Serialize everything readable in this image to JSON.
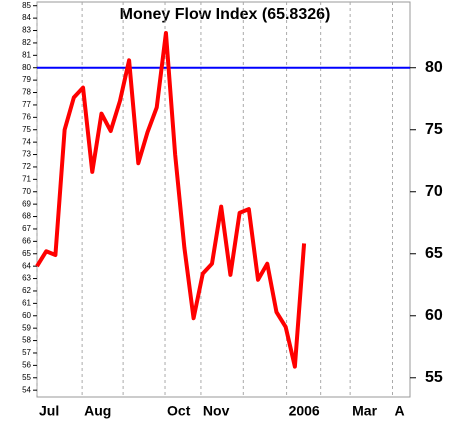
{
  "chart_data": {
    "type": "line",
    "title": "Money Flow Index (65.8326)",
    "x": [
      0,
      1,
      2,
      3,
      4,
      5,
      6,
      7,
      8,
      9,
      10,
      11,
      12,
      13,
      14,
      15,
      16,
      17,
      18,
      19,
      20,
      21,
      22,
      23,
      24,
      25,
      26,
      27,
      28,
      29
    ],
    "series": [
      {
        "name": "Money Flow Index",
        "color": "#ff0000",
        "values": [
          64.0,
          65.2,
          64.9,
          75.0,
          77.6,
          78.4,
          71.6,
          76.3,
          74.9,
          77.3,
          80.6,
          72.3,
          74.8,
          76.8,
          82.8,
          73.0,
          65.5,
          59.8,
          63.4,
          64.2,
          68.8,
          63.3,
          68.3,
          68.6,
          62.9,
          64.2,
          60.3,
          59.1,
          55.9,
          65.8326
        ]
      }
    ],
    "xlim": [
      0,
      40.5
    ],
    "xticks": [
      {
        "value": 0,
        "label": "Jul"
      },
      {
        "value": 4.9,
        "label": "Aug"
      },
      {
        "value": 9.35,
        "label": null
      },
      {
        "value": 13.9,
        "label": "Oct"
      },
      {
        "value": 17.8,
        "label": "Nov"
      },
      {
        "value": 22.4,
        "label": null
      },
      {
        "value": 27.1,
        "label": "2006"
      },
      {
        "value": 30.8,
        "label": null
      },
      {
        "value": 34,
        "label": "Mar"
      },
      {
        "value": 38.6,
        "label": "A"
      }
    ],
    "ylim": [
      53.45,
      85.3
    ],
    "yticks": [
      54,
      55,
      56,
      57,
      58,
      59,
      60,
      61,
      62,
      63,
      64,
      65,
      66,
      67,
      68,
      69,
      70,
      71,
      72,
      73,
      74,
      75,
      76,
      77,
      78,
      79,
      80,
      81,
      82,
      83,
      84,
      85
    ],
    "y2lim": [
      53.45,
      85.3
    ],
    "y2ticks": [
      55,
      60,
      65,
      70,
      75,
      80
    ],
    "reference_line": {
      "value": 80,
      "color": "#0000ff"
    },
    "grid": true
  }
}
